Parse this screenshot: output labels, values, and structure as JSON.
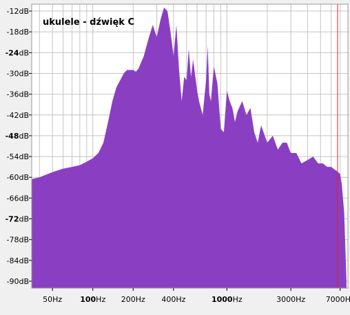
{
  "chart_data": {
    "type": "area",
    "title": "ukulele - dźwięk C",
    "xscale": "log",
    "xlim": [
      35,
      8000
    ],
    "ylim": [
      -92,
      -10
    ],
    "grid": true,
    "y_ticks": [
      {
        "value": -12,
        "label": "-12dB",
        "bold": false
      },
      {
        "value": -18,
        "label": "-18dB",
        "bold": false
      },
      {
        "value": -24,
        "label": "-24dB",
        "bold": true
      },
      {
        "value": -30,
        "label": "-30dB",
        "bold": false
      },
      {
        "value": -36,
        "label": "-36dB",
        "bold": false
      },
      {
        "value": -42,
        "label": "-42dB",
        "bold": false
      },
      {
        "value": -48,
        "label": "-48dB",
        "bold": true
      },
      {
        "value": -54,
        "label": "-54dB",
        "bold": false
      },
      {
        "value": -60,
        "label": "-60dB",
        "bold": false
      },
      {
        "value": -66,
        "label": "-66dB",
        "bold": false
      },
      {
        "value": -72,
        "label": "-72dB",
        "bold": true
      },
      {
        "value": -78,
        "label": "-78dB",
        "bold": false
      },
      {
        "value": -84,
        "label": "-84dB",
        "bold": false
      },
      {
        "value": -90,
        "label": "-90dB",
        "bold": false
      }
    ],
    "x_ticks": [
      {
        "value": 50,
        "label": "50Hz",
        "bold": false
      },
      {
        "value": 100,
        "label": "100Hz",
        "bold": true
      },
      {
        "value": 200,
        "label": "200Hz",
        "bold": false
      },
      {
        "value": 400,
        "label": "400Hz",
        "bold": false
      },
      {
        "value": 1000,
        "label": "1000Hz",
        "bold": true
      },
      {
        "value": 3000,
        "label": "3000Hz",
        "bold": false
      },
      {
        "value": 7000,
        "label": "7000Hz",
        "bold": false
      }
    ],
    "x_gridlines": [
      40,
      50,
      60,
      70,
      80,
      90,
      100,
      200,
      300,
      400,
      500,
      600,
      700,
      800,
      900,
      1000,
      2000,
      3000,
      4000,
      5000,
      6000,
      7000
    ],
    "marker_x": 6700,
    "fill_color": "#8a3fc2",
    "marker_color": "#e02020",
    "grid_color": "#c4c4c4",
    "background_color": "#ffffff",
    "spectrum": {
      "x": [
        35,
        40,
        50,
        60,
        70,
        80,
        90,
        100,
        110,
        120,
        130,
        140,
        150,
        160,
        170,
        180,
        190,
        200,
        210,
        220,
        240,
        260,
        280,
        300,
        320,
        340,
        360,
        380,
        400,
        420,
        440,
        460,
        480,
        500,
        520,
        540,
        560,
        600,
        620,
        660,
        700,
        720,
        740,
        760,
        800,
        850,
        900,
        950,
        1000,
        1050,
        1100,
        1150,
        1200,
        1300,
        1400,
        1500,
        1600,
        1700,
        1800,
        2000,
        2200,
        2400,
        2600,
        2800,
        3000,
        3300,
        3600,
        4000,
        4400,
        4800,
        5200,
        5600,
        6000,
        6500,
        7000,
        7200,
        7500,
        7800
      ],
      "y": [
        -60.5,
        -60,
        -58.5,
        -57.5,
        -57,
        -56.5,
        -55.5,
        -54.5,
        -53,
        -50,
        -44,
        -38,
        -34,
        -32,
        -30,
        -29,
        -29,
        -29,
        -29.5,
        -28.5,
        -25,
        -20,
        -16,
        -19.5,
        -14.5,
        -11,
        -12,
        -18,
        -25,
        -16,
        -29,
        -38,
        -31,
        -32,
        -23,
        -31,
        -26,
        -35,
        -38,
        -42,
        -32,
        -22,
        -36,
        -38,
        -28,
        -33,
        -46,
        -47,
        -35,
        -38,
        -40,
        -44,
        -41,
        -38,
        -42,
        -40,
        -47,
        -50,
        -45,
        -50,
        -48,
        -52,
        -50,
        -50,
        -53,
        -53,
        -56,
        -55,
        -54,
        -56,
        -56,
        -57,
        -57,
        -58,
        -59,
        -62,
        -70,
        -90
      ]
    }
  }
}
